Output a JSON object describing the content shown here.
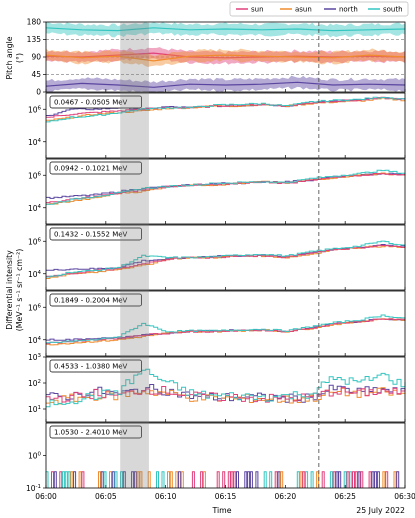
{
  "figure": {
    "x_axis_label": "Time",
    "date_label": "25 July 2022",
    "x_tick_labels": [
      "06:00",
      "06:05",
      "06:10",
      "06:15",
      "06:20",
      "06:25",
      "06:30"
    ],
    "pitch_ylabel": "Pitch angle",
    "pitch_yunit": "(°)",
    "intensity_ylabel_line1": "Differential intensity",
    "intensity_ylabel_line2": "(MeV⁻¹ s⁻¹ sr⁻¹ cm⁻²)"
  },
  "chart_data": {
    "type": "line",
    "x_range_minutes": [
      0,
      30
    ],
    "x_ticks_minutes": [
      0,
      5,
      10,
      15,
      20,
      25,
      30
    ],
    "shaded_interval_minutes": [
      6.2,
      8.6
    ],
    "dashed_line_minute": 22.8,
    "legend_placement": "top-right",
    "series": [
      {
        "name": "sun",
        "color": "#e0407a"
      },
      {
        "name": "asun",
        "color": "#f08c2e"
      },
      {
        "name": "north",
        "color": "#5b45a0"
      },
      {
        "name": "south",
        "color": "#33c6c0"
      }
    ],
    "pitch_panel": {
      "ylim": [
        0,
        180
      ],
      "yticks": [
        "0",
        "45",
        "90",
        "135",
        "180"
      ],
      "tracks": [
        {
          "name": "south",
          "x": [
            0,
            3,
            6,
            9,
            12,
            15,
            18,
            21,
            24,
            27,
            30
          ],
          "y": [
            165,
            160,
            158,
            165,
            160,
            162,
            160,
            162,
            158,
            160,
            162
          ]
        },
        {
          "name": "sun",
          "x": [
            0,
            3,
            6,
            9,
            12,
            15,
            18,
            21,
            24,
            27,
            30
          ],
          "y": [
            92,
            90,
            95,
            100,
            90,
            88,
            90,
            92,
            90,
            92,
            90
          ]
        },
        {
          "name": "asun",
          "x": [
            0,
            3,
            6,
            9,
            12,
            15,
            18,
            21,
            24,
            27,
            30
          ],
          "y": [
            95,
            88,
            92,
            80,
            92,
            95,
            92,
            90,
            88,
            95,
            90
          ]
        },
        {
          "name": "north",
          "x": [
            0,
            3,
            6,
            9,
            12,
            15,
            18,
            21,
            24,
            27,
            30
          ],
          "y": [
            15,
            22,
            18,
            12,
            20,
            18,
            20,
            25,
            18,
            20,
            18
          ]
        }
      ]
    },
    "energy_panels": [
      {
        "label": "0.0467 - 0.0505 MeV",
        "log_ylim": [
          3,
          7
        ],
        "ytick_exponents": [
          4,
          6
        ],
        "x": [
          0,
          2,
          4,
          6,
          8,
          10,
          12,
          14,
          16,
          18,
          20,
          22,
          24,
          26,
          28,
          30
        ],
        "series": {
          "sun": [
            5.5,
            5.7,
            5.8,
            5.9,
            6.0,
            6.1,
            6.1,
            6.2,
            6.25,
            6.3,
            6.2,
            6.4,
            6.5,
            6.55,
            6.7,
            6.6
          ],
          "asun": [
            5.3,
            5.5,
            5.7,
            5.8,
            5.9,
            6.05,
            6.1,
            6.2,
            6.2,
            6.3,
            6.2,
            6.35,
            6.45,
            6.5,
            6.65,
            6.55
          ],
          "north": [
            5.6,
            6.0,
            6.0,
            6.1,
            6.0,
            6.15,
            6.1,
            6.2,
            6.2,
            6.3,
            6.2,
            6.4,
            6.5,
            6.6,
            6.7,
            6.6
          ],
          "south": [
            5.2,
            5.5,
            5.6,
            5.8,
            6.0,
            6.1,
            6.1,
            6.25,
            6.3,
            6.35,
            6.2,
            6.45,
            6.55,
            6.6,
            6.75,
            6.6
          ]
        }
      },
      {
        "label": "0.0942 - 0.1021 MeV",
        "log_ylim": [
          3,
          7
        ],
        "ytick_exponents": [
          4,
          6
        ],
        "x": [
          0,
          2,
          4,
          6,
          8,
          10,
          12,
          14,
          16,
          18,
          20,
          22,
          24,
          26,
          28,
          30
        ],
        "series": {
          "sun": [
            4.3,
            4.5,
            4.7,
            4.9,
            5.1,
            5.3,
            5.4,
            5.4,
            5.5,
            5.6,
            5.5,
            5.7,
            5.9,
            6.0,
            6.1,
            6.0
          ],
          "asun": [
            4.2,
            4.4,
            4.6,
            4.9,
            5.0,
            5.3,
            5.4,
            5.4,
            5.5,
            5.6,
            5.5,
            5.7,
            5.85,
            6.0,
            6.1,
            6.0
          ],
          "north": [
            4.6,
            4.7,
            4.8,
            5.0,
            5.2,
            5.3,
            5.4,
            5.5,
            5.5,
            5.6,
            5.6,
            5.7,
            5.9,
            6.0,
            6.1,
            6.05
          ],
          "south": [
            4.2,
            4.5,
            4.7,
            4.9,
            5.2,
            5.3,
            5.4,
            5.5,
            5.55,
            5.6,
            5.55,
            5.8,
            5.95,
            6.1,
            6.3,
            6.1
          ]
        }
      },
      {
        "label": "0.1432 - 0.1552 MeV",
        "log_ylim": [
          3,
          7
        ],
        "ytick_exponents": [
          4,
          6
        ],
        "x": [
          0,
          2,
          4,
          6,
          8,
          10,
          12,
          14,
          16,
          18,
          20,
          22,
          24,
          26,
          28,
          30
        ],
        "series": {
          "sun": [
            3.8,
            4.0,
            4.2,
            4.3,
            4.6,
            4.9,
            5.0,
            5.0,
            5.1,
            5.1,
            5.0,
            5.3,
            5.5,
            5.6,
            5.75,
            5.6
          ],
          "asun": [
            3.7,
            4.0,
            4.1,
            4.3,
            4.5,
            4.9,
            5.0,
            5.0,
            5.1,
            5.1,
            5.0,
            5.2,
            5.5,
            5.6,
            5.7,
            5.6
          ],
          "north": [
            4.2,
            4.3,
            4.3,
            4.4,
            4.8,
            4.9,
            5.0,
            5.1,
            5.1,
            5.15,
            5.05,
            5.3,
            5.5,
            5.6,
            5.8,
            5.65
          ],
          "south": [
            3.8,
            4.1,
            4.2,
            4.4,
            5.1,
            5.0,
            5.0,
            5.05,
            5.15,
            5.2,
            5.1,
            5.35,
            5.55,
            5.7,
            6.0,
            5.7
          ]
        }
      },
      {
        "label": "0.1849 - 0.2004 MeV",
        "log_ylim": [
          3,
          7
        ],
        "ytick_exponents": [
          4,
          6
        ],
        "x": [
          0,
          2,
          4,
          6,
          8,
          10,
          12,
          14,
          16,
          18,
          20,
          22,
          24,
          26,
          28,
          30
        ],
        "series": {
          "sun": [
            3.8,
            3.9,
            4.0,
            4.1,
            4.3,
            4.4,
            4.5,
            4.5,
            4.55,
            4.6,
            4.5,
            4.7,
            5.0,
            5.1,
            5.3,
            5.2
          ],
          "asun": [
            3.7,
            3.8,
            3.9,
            4.0,
            4.2,
            4.4,
            4.5,
            4.5,
            4.55,
            4.6,
            4.5,
            4.7,
            4.95,
            5.1,
            5.3,
            5.2
          ],
          "north": [
            4.0,
            4.0,
            4.1,
            4.1,
            4.3,
            4.4,
            4.5,
            4.55,
            4.6,
            4.6,
            4.5,
            4.75,
            5.0,
            5.1,
            5.3,
            5.2
          ],
          "south": [
            3.8,
            3.9,
            4.0,
            4.2,
            5.0,
            4.5,
            4.55,
            4.55,
            4.6,
            4.65,
            4.55,
            4.8,
            5.05,
            5.2,
            5.5,
            5.3
          ]
        }
      },
      {
        "label": "0.4533 - 1.0380 MeV",
        "log_ylim": [
          0.5,
          3
        ],
        "ytick_exponents": [
          1,
          2,
          3
        ],
        "x": [
          0,
          2,
          4,
          6,
          8,
          10,
          12,
          14,
          16,
          18,
          20,
          22,
          24,
          26,
          28,
          30
        ],
        "series": {
          "sun": [
            1.4,
            1.45,
            1.6,
            1.5,
            1.75,
            1.7,
            1.5,
            1.45,
            1.45,
            1.4,
            1.4,
            1.45,
            1.7,
            1.6,
            1.7,
            1.6
          ],
          "asun": [
            1.3,
            1.4,
            1.5,
            1.5,
            1.7,
            1.6,
            1.45,
            1.4,
            1.4,
            1.4,
            1.35,
            1.4,
            1.65,
            1.6,
            1.65,
            1.55
          ],
          "north": [
            1.45,
            1.5,
            1.7,
            1.55,
            1.8,
            1.7,
            1.5,
            1.45,
            1.45,
            1.45,
            1.4,
            1.45,
            1.8,
            1.65,
            1.75,
            1.6
          ],
          "south": [
            1.2,
            1.35,
            1.5,
            1.7,
            2.5,
            2.0,
            1.6,
            1.5,
            1.5,
            1.45,
            1.5,
            1.6,
            2.2,
            2.0,
            2.3,
            1.9
          ]
        }
      },
      {
        "label": "1.0530 - 2.4010 MeV",
        "log_ylim": [
          -1,
          1
        ],
        "ytick_exponents": [
          -1,
          0
        ],
        "x": [
          0,
          30
        ],
        "series": {}
      }
    ]
  }
}
